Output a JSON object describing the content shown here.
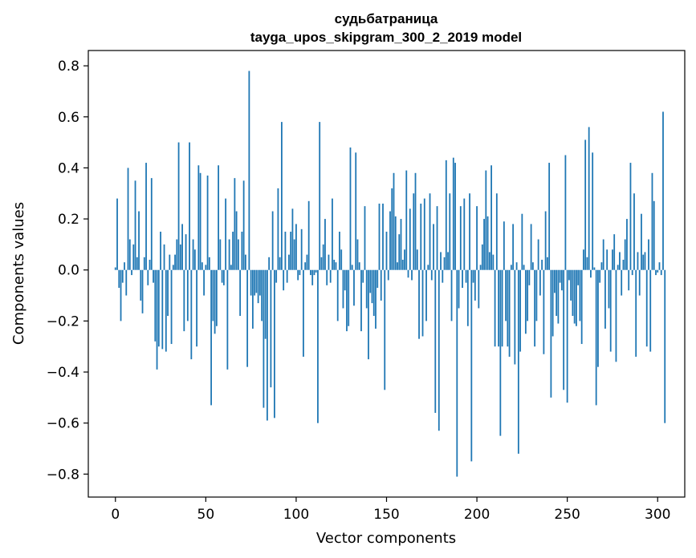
{
  "chart_data": {
    "type": "bar",
    "title": "судьбатраница",
    "subtitle": "tayga_upos_skipgram_300_2_2019 model",
    "xlabel": "Vector components",
    "ylabel": "Components values",
    "xlim": [
      -15,
      315
    ],
    "ylim": [
      -0.89,
      0.86
    ],
    "xticks": [
      0,
      50,
      100,
      150,
      200,
      250,
      300
    ],
    "yticks": [
      -0.8,
      -0.6,
      -0.4,
      -0.2,
      0.0,
      0.2,
      0.4,
      0.6,
      0.8
    ],
    "xtick_labels": [
      "0",
      "50",
      "100",
      "150",
      "200",
      "250",
      "300"
    ],
    "ytick_labels": [
      "−0.8",
      "−0.6",
      "−0.4",
      "−0.2",
      "0.0",
      "0.2",
      "0.4",
      "0.6",
      "0.8"
    ],
    "bar_color": "#1f77b4",
    "grid": false,
    "values": [
      0.01,
      0.28,
      -0.07,
      -0.2,
      -0.05,
      0.03,
      -0.1,
      0.4,
      0.12,
      -0.02,
      0.1,
      0.35,
      0.05,
      0.23,
      -0.12,
      -0.17,
      0.05,
      0.42,
      -0.06,
      0.04,
      0.36,
      -0.05,
      -0.28,
      -0.39,
      -0.3,
      0.15,
      -0.31,
      0.1,
      -0.32,
      -0.18,
      0.06,
      -0.29,
      0.02,
      0.06,
      0.12,
      0.5,
      0.1,
      0.18,
      -0.24,
      0.14,
      -0.2,
      0.5,
      -0.35,
      0.12,
      0.08,
      -0.3,
      0.41,
      0.38,
      0.03,
      -0.1,
      0.02,
      0.37,
      0.05,
      -0.53,
      -0.2,
      -0.25,
      -0.22,
      0.41,
      0.12,
      -0.05,
      -0.06,
      0.28,
      -0.39,
      0.12,
      0.02,
      0.15,
      0.36,
      0.23,
      0.12,
      -0.18,
      0.15,
      0.35,
      0.06,
      -0.38,
      0.78,
      -0.1,
      -0.23,
      -0.1,
      -0.09,
      -0.13,
      -0.1,
      -0.2,
      -0.54,
      -0.27,
      -0.59,
      0.05,
      -0.46,
      0.23,
      -0.58,
      -0.05,
      0.32,
      0.05,
      0.58,
      -0.08,
      0.15,
      -0.05,
      0.06,
      0.15,
      0.24,
      0.12,
      0.18,
      -0.04,
      -0.02,
      0.16,
      -0.34,
      0.03,
      0.06,
      0.27,
      -0.02,
      -0.06,
      -0.02,
      -0.01,
      -0.6,
      0.58,
      0.05,
      0.1,
      0.2,
      -0.06,
      0.06,
      -0.05,
      0.28,
      0.04,
      0.03,
      -0.2,
      0.15,
      0.08,
      -0.15,
      -0.08,
      -0.24,
      -0.22,
      0.48,
      0.02,
      -0.14,
      0.46,
      0.12,
      0.03,
      -0.24,
      -0.05,
      0.25,
      -0.15,
      -0.35,
      -0.09,
      -0.13,
      -0.18,
      -0.23,
      -0.07,
      0.26,
      -0.12,
      0.26,
      -0.47,
      0.15,
      -0.04,
      0.23,
      0.32,
      0.38,
      0.21,
      0.03,
      0.14,
      0.2,
      0.04,
      0.08,
      0.39,
      -0.03,
      0.24,
      -0.04,
      0.3,
      0.38,
      0.08,
      -0.27,
      0.26,
      -0.26,
      0.28,
      -0.2,
      0.02,
      0.3,
      -0.04,
      0.18,
      -0.56,
      0.25,
      -0.63,
      0.07,
      -0.05,
      0.05,
      0.43,
      0.07,
      0.3,
      -0.2,
      0.44,
      0.42,
      -0.81,
      -0.15,
      0.25,
      -0.07,
      0.28,
      -0.05,
      -0.22,
      0.3,
      -0.75,
      -0.05,
      -0.12,
      0.25,
      -0.15,
      0.02,
      0.1,
      0.2,
      0.39,
      0.21,
      0.07,
      0.41,
      0.06,
      -0.3,
      0.3,
      -0.3,
      -0.65,
      -0.3,
      0.19,
      -0.2,
      -0.3,
      -0.34,
      0.02,
      0.18,
      -0.37,
      0.03,
      -0.72,
      -0.32,
      0.22,
      0.02,
      -0.25,
      -0.2,
      -0.06,
      0.18,
      0.03,
      -0.3,
      -0.2,
      0.12,
      -0.1,
      0.04,
      -0.33,
      0.23,
      0.05,
      0.42,
      -0.5,
      -0.26,
      -0.09,
      -0.18,
      -0.21,
      -0.05,
      -0.08,
      -0.47,
      0.45,
      -0.52,
      -0.04,
      -0.12,
      -0.18,
      -0.21,
      -0.22,
      -0.06,
      -0.2,
      -0.29,
      0.08,
      0.51,
      0.05,
      0.56,
      -0.03,
      0.46,
      0.01,
      -0.53,
      -0.38,
      -0.05,
      0.03,
      0.12,
      -0.23,
      0.08,
      -0.15,
      -0.32,
      0.08,
      0.14,
      -0.36,
      0.02,
      0.07,
      -0.1,
      0.04,
      0.12,
      0.2,
      -0.08,
      0.42,
      -0.02,
      0.3,
      -0.34,
      0.07,
      -0.1,
      0.22,
      0.06,
      0.07,
      -0.3,
      0.12,
      -0.32,
      0.38,
      0.27,
      -0.02,
      -0.01,
      0.03,
      -0.02,
      0.62,
      -0.6
    ]
  }
}
